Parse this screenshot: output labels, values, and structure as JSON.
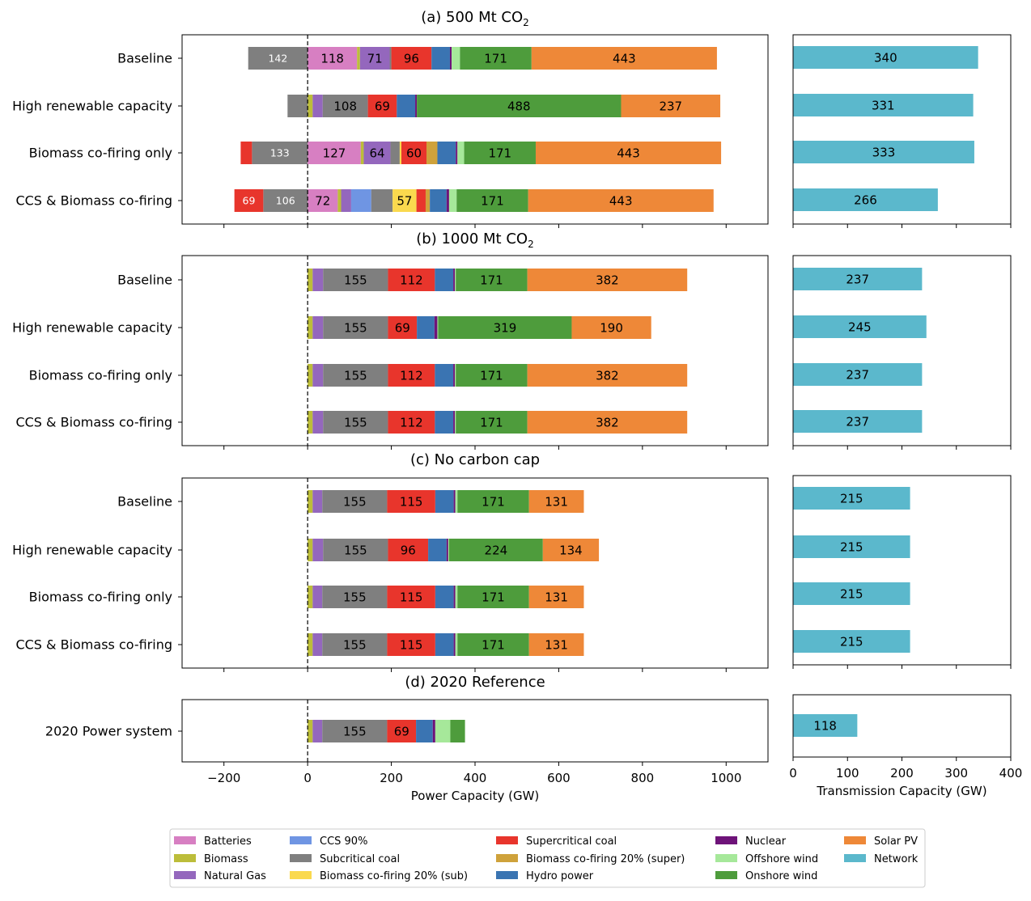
{
  "chart_data": {
    "type": "bar",
    "orientation": "horizontal-stacked",
    "xlabel": "Power Capacity (GW)",
    "xlim": [
      -300,
      1100
    ],
    "xticks": [
      -200,
      0,
      200,
      400,
      600,
      800,
      1000
    ],
    "xtick_labels": [
      "−200",
      "0",
      "200",
      "400",
      "600",
      "800",
      "1000"
    ],
    "transmission_xlabel": "Transmission Capacity (GW)",
    "transmission_xlim": [
      0,
      400
    ],
    "transmission_xticks": [
      0,
      100,
      200,
      300,
      400
    ],
    "transmission_xtick_labels": [
      "0",
      "100",
      "200",
      "300",
      "400"
    ],
    "technologies": [
      {
        "key": "batteries",
        "name": "Batteries",
        "color": "#d77fc2"
      },
      {
        "key": "biomass",
        "name": "Biomass",
        "color": "#bcbd3a"
      },
      {
        "key": "gas",
        "name": "Natural Gas",
        "color": "#9467bd"
      },
      {
        "key": "ccs",
        "name": "CCS 90%",
        "color": "#6f95e3"
      },
      {
        "key": "subcoal",
        "name": "Subcritical coal",
        "color": "#7f7f7f"
      },
      {
        "key": "bcsub",
        "name": "Biomass co-firing 20% (sub)",
        "color": "#fad94e"
      },
      {
        "key": "supcoal",
        "name": "Supercritical coal",
        "color": "#e8352c"
      },
      {
        "key": "bcsup",
        "name": "Biomass co-firing 20% (super)",
        "color": "#cfa23b"
      },
      {
        "key": "hydro",
        "name": "Hydro power",
        "color": "#3a74b2"
      },
      {
        "key": "nuclear",
        "name": "Nuclear",
        "color": "#6e1379"
      },
      {
        "key": "offshore",
        "name": "Offshore wind",
        "color": "#a6e89a"
      },
      {
        "key": "onshore",
        "name": "Onshore wind",
        "color": "#4e9c3c"
      },
      {
        "key": "solar",
        "name": "Solar PV",
        "color": "#ee8838"
      },
      {
        "key": "network",
        "name": "Network",
        "color": "#5bb8cc"
      }
    ],
    "legend_order": [
      "batteries",
      "biomass",
      "gas",
      "ccs",
      "subcoal",
      "bcsub",
      "supcoal",
      "bcsup",
      "hydro",
      "nuclear",
      "offshore",
      "onshore",
      "solar",
      "network"
    ],
    "panels": [
      {
        "title": "(a) 500 Mt CO",
        "title_sub": "2",
        "rows": [
          {
            "label": "Baseline",
            "negative": [
              {
                "tech": "subcoal",
                "value": 142,
                "text": "142"
              }
            ],
            "positive": [
              {
                "tech": "batteries",
                "value": 118,
                "text": "118"
              },
              {
                "tech": "biomass",
                "value": 7
              },
              {
                "tech": "gas",
                "value": 71,
                "text": "71"
              },
              {
                "tech": "subcoal",
                "value": 4
              },
              {
                "tech": "supcoal",
                "value": 96,
                "text": "96"
              },
              {
                "tech": "hydro",
                "value": 44
              },
              {
                "tech": "nuclear",
                "value": 4
              },
              {
                "tech": "offshore",
                "value": 20
              },
              {
                "tech": "onshore",
                "value": 171,
                "text": "171"
              },
              {
                "tech": "solar",
                "value": 443,
                "text": "443"
              }
            ],
            "network": 340,
            "network_text": "340"
          },
          {
            "label": "High renewable capacity",
            "negative": [
              {
                "tech": "subcoal",
                "value": 48
              }
            ],
            "positive": [
              {
                "tech": "biomass",
                "value": 12
              },
              {
                "tech": "gas",
                "value": 24
              },
              {
                "tech": "subcoal",
                "value": 108,
                "text": "108"
              },
              {
                "tech": "supcoal",
                "value": 69,
                "text": "69"
              },
              {
                "tech": "hydro",
                "value": 44
              },
              {
                "tech": "nuclear",
                "value": 4
              },
              {
                "tech": "onshore",
                "value": 488,
                "text": "488"
              },
              {
                "tech": "solar",
                "value": 237,
                "text": "237"
              }
            ],
            "network": 331,
            "network_text": "331"
          },
          {
            "label": "Biomass co-firing only",
            "negative": [
              {
                "tech": "subcoal",
                "value": 133,
                "text": "133"
              },
              {
                "tech": "supcoal",
                "value": 27
              }
            ],
            "positive": [
              {
                "tech": "batteries",
                "value": 127,
                "text": "127"
              },
              {
                "tech": "biomass",
                "value": 7
              },
              {
                "tech": "gas",
                "value": 64,
                "text": "64"
              },
              {
                "tech": "subcoal",
                "value": 22
              },
              {
                "tech": "bcsub",
                "value": 4
              },
              {
                "tech": "supcoal",
                "value": 60,
                "text": "60"
              },
              {
                "tech": "bcsup",
                "value": 26
              },
              {
                "tech": "hydro",
                "value": 44
              },
              {
                "tech": "nuclear",
                "value": 4
              },
              {
                "tech": "offshore",
                "value": 16
              },
              {
                "tech": "onshore",
                "value": 171,
                "text": "171"
              },
              {
                "tech": "solar",
                "value": 443,
                "text": "443"
              }
            ],
            "network": 333,
            "network_text": "333"
          },
          {
            "label": "CCS & Biomass co-firing",
            "negative": [
              {
                "tech": "subcoal",
                "value": 106,
                "text": "106"
              },
              {
                "tech": "supcoal",
                "value": 69,
                "text": "69"
              }
            ],
            "positive": [
              {
                "tech": "batteries",
                "value": 72,
                "text": "72"
              },
              {
                "tech": "biomass",
                "value": 8
              },
              {
                "tech": "gas",
                "value": 24
              },
              {
                "tech": "ccs",
                "value": 48
              },
              {
                "tech": "subcoal",
                "value": 51
              },
              {
                "tech": "bcsub",
                "value": 57,
                "text": "57"
              },
              {
                "tech": "supcoal",
                "value": 22
              },
              {
                "tech": "bcsup",
                "value": 10
              },
              {
                "tech": "hydro",
                "value": 40
              },
              {
                "tech": "nuclear",
                "value": 6
              },
              {
                "tech": "offshore",
                "value": 18
              },
              {
                "tech": "onshore",
                "value": 171,
                "text": "171"
              },
              {
                "tech": "solar",
                "value": 443,
                "text": "443"
              }
            ],
            "network": 266,
            "network_text": "266"
          }
        ]
      },
      {
        "title": "(b) 1000 Mt CO",
        "title_sub": "2",
        "rows": [
          {
            "label": "Baseline",
            "negative": [],
            "positive": [
              {
                "tech": "biomass",
                "value": 12
              },
              {
                "tech": "gas",
                "value": 25
              },
              {
                "tech": "subcoal",
                "value": 155,
                "text": "155"
              },
              {
                "tech": "supcoal",
                "value": 112,
                "text": "112"
              },
              {
                "tech": "hydro",
                "value": 44
              },
              {
                "tech": "nuclear",
                "value": 4
              },
              {
                "tech": "offshore",
                "value": 2
              },
              {
                "tech": "onshore",
                "value": 171,
                "text": "171"
              },
              {
                "tech": "solar",
                "value": 382,
                "text": "382"
              }
            ],
            "network": 237,
            "network_text": "237"
          },
          {
            "label": "High renewable capacity",
            "negative": [],
            "positive": [
              {
                "tech": "biomass",
                "value": 12
              },
              {
                "tech": "gas",
                "value": 25
              },
              {
                "tech": "subcoal",
                "value": 155,
                "text": "155"
              },
              {
                "tech": "supcoal",
                "value": 69,
                "text": "69"
              },
              {
                "tech": "hydro",
                "value": 42
              },
              {
                "tech": "nuclear",
                "value": 7
              },
              {
                "tech": "offshore",
                "value": 2
              },
              {
                "tech": "onshore",
                "value": 319,
                "text": "319"
              },
              {
                "tech": "solar",
                "value": 190,
                "text": "190"
              }
            ],
            "network": 245,
            "network_text": "245"
          },
          {
            "label": "Biomass co-firing only",
            "negative": [],
            "positive": [
              {
                "tech": "biomass",
                "value": 12
              },
              {
                "tech": "gas",
                "value": 25
              },
              {
                "tech": "subcoal",
                "value": 155,
                "text": "155"
              },
              {
                "tech": "supcoal",
                "value": 112,
                "text": "112"
              },
              {
                "tech": "hydro",
                "value": 44
              },
              {
                "tech": "nuclear",
                "value": 4
              },
              {
                "tech": "offshore",
                "value": 2
              },
              {
                "tech": "onshore",
                "value": 171,
                "text": "171"
              },
              {
                "tech": "solar",
                "value": 382,
                "text": "382"
              }
            ],
            "network": 237,
            "network_text": "237"
          },
          {
            "label": "CCS & Biomass co-firing",
            "negative": [],
            "positive": [
              {
                "tech": "biomass",
                "value": 12
              },
              {
                "tech": "gas",
                "value": 25
              },
              {
                "tech": "subcoal",
                "value": 155,
                "text": "155"
              },
              {
                "tech": "supcoal",
                "value": 112,
                "text": "112"
              },
              {
                "tech": "hydro",
                "value": 44
              },
              {
                "tech": "nuclear",
                "value": 4
              },
              {
                "tech": "offshore",
                "value": 2
              },
              {
                "tech": "onshore",
                "value": 171,
                "text": "171"
              },
              {
                "tech": "solar",
                "value": 382,
                "text": "382"
              }
            ],
            "network": 237,
            "network_text": "237"
          }
        ]
      },
      {
        "title": "(c) No carbon cap",
        "title_sub": "",
        "rows": [
          {
            "label": "Baseline",
            "negative": [],
            "positive": [
              {
                "tech": "biomass",
                "value": 12
              },
              {
                "tech": "gas",
                "value": 23
              },
              {
                "tech": "subcoal",
                "value": 155,
                "text": "155"
              },
              {
                "tech": "supcoal",
                "value": 115,
                "text": "115"
              },
              {
                "tech": "hydro",
                "value": 44
              },
              {
                "tech": "nuclear",
                "value": 4
              },
              {
                "tech": "offshore",
                "value": 5
              },
              {
                "tech": "onshore",
                "value": 171,
                "text": "171"
              },
              {
                "tech": "solar",
                "value": 131,
                "text": "131"
              }
            ],
            "network": 215,
            "network_text": "215"
          },
          {
            "label": "High renewable capacity",
            "negative": [],
            "positive": [
              {
                "tech": "biomass",
                "value": 12
              },
              {
                "tech": "gas",
                "value": 25
              },
              {
                "tech": "subcoal",
                "value": 155,
                "text": "155"
              },
              {
                "tech": "supcoal",
                "value": 96,
                "text": "96"
              },
              {
                "tech": "hydro",
                "value": 44
              },
              {
                "tech": "nuclear",
                "value": 4
              },
              {
                "tech": "offshore",
                "value": 2
              },
              {
                "tech": "onshore",
                "value": 224,
                "text": "224"
              },
              {
                "tech": "solar",
                "value": 134,
                "text": "134"
              }
            ],
            "network": 215,
            "network_text": "215"
          },
          {
            "label": "Biomass co-firing only",
            "negative": [],
            "positive": [
              {
                "tech": "biomass",
                "value": 12
              },
              {
                "tech": "gas",
                "value": 23
              },
              {
                "tech": "subcoal",
                "value": 155,
                "text": "155"
              },
              {
                "tech": "supcoal",
                "value": 115,
                "text": "115"
              },
              {
                "tech": "hydro",
                "value": 44
              },
              {
                "tech": "nuclear",
                "value": 4
              },
              {
                "tech": "offshore",
                "value": 5
              },
              {
                "tech": "onshore",
                "value": 171,
                "text": "171"
              },
              {
                "tech": "solar",
                "value": 131,
                "text": "131"
              }
            ],
            "network": 215,
            "network_text": "215"
          },
          {
            "label": "CCS & Biomass co-firing",
            "negative": [],
            "positive": [
              {
                "tech": "biomass",
                "value": 12
              },
              {
                "tech": "gas",
                "value": 23
              },
              {
                "tech": "subcoal",
                "value": 155,
                "text": "155"
              },
              {
                "tech": "supcoal",
                "value": 115,
                "text": "115"
              },
              {
                "tech": "hydro",
                "value": 44
              },
              {
                "tech": "nuclear",
                "value": 4
              },
              {
                "tech": "offshore",
                "value": 5
              },
              {
                "tech": "onshore",
                "value": 171,
                "text": "171"
              },
              {
                "tech": "solar",
                "value": 131,
                "text": "131"
              }
            ],
            "network": 215,
            "network_text": "215"
          }
        ]
      },
      {
        "title": "(d) 2020 Reference",
        "title_sub": "",
        "rows": [
          {
            "label": "2020 Power system",
            "negative": [],
            "positive": [
              {
                "tech": "biomass",
                "value": 12
              },
              {
                "tech": "gas",
                "value": 23
              },
              {
                "tech": "subcoal",
                "value": 155,
                "text": "155"
              },
              {
                "tech": "supcoal",
                "value": 69,
                "text": "69"
              },
              {
                "tech": "hydro",
                "value": 40
              },
              {
                "tech": "nuclear",
                "value": 6
              },
              {
                "tech": "offshore",
                "value": 36
              },
              {
                "tech": "onshore",
                "value": 35
              }
            ],
            "network": 118,
            "network_text": "118"
          }
        ]
      }
    ]
  }
}
